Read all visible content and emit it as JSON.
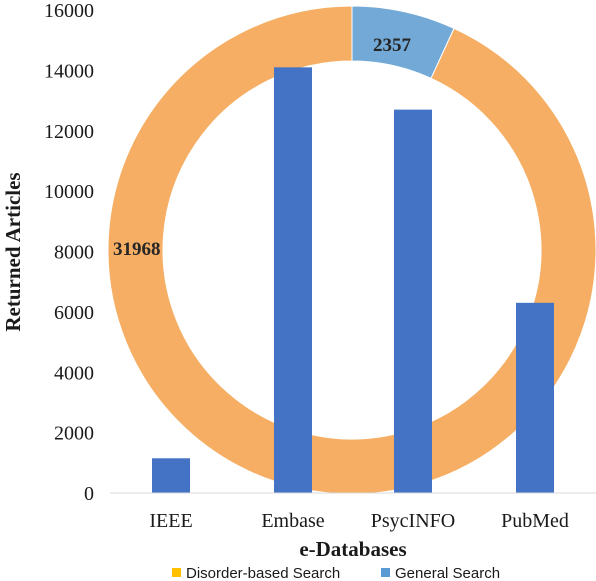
{
  "chart_data": [
    {
      "type": "bar",
      "categories": [
        "IEEE",
        "Embase",
        "PsycINFO",
        "PubMed"
      ],
      "values": [
        1150,
        14100,
        12700,
        6300
      ],
      "xlabel": "e-Databases",
      "ylabel": "Returned Articles",
      "ylim": [
        0,
        16000
      ],
      "yticks": [
        0,
        2000,
        4000,
        6000,
        8000,
        10000,
        12000,
        14000,
        16000
      ],
      "color": "#4472c4",
      "grid": false
    },
    {
      "type": "pie",
      "style": "donut",
      "slices": [
        {
          "name": "Disorder-based Search",
          "value": 31968,
          "label": "31968",
          "color": "#f5ae64"
        },
        {
          "name": "General Search",
          "value": 2357,
          "label": "2357",
          "color": "#72a9d6"
        }
      ]
    }
  ],
  "legend": {
    "position": "bottom",
    "items": [
      {
        "label": "Disorder-based Search",
        "color": "#ffc000"
      },
      {
        "label": "General Search",
        "color": "#5b9bd5"
      }
    ]
  }
}
